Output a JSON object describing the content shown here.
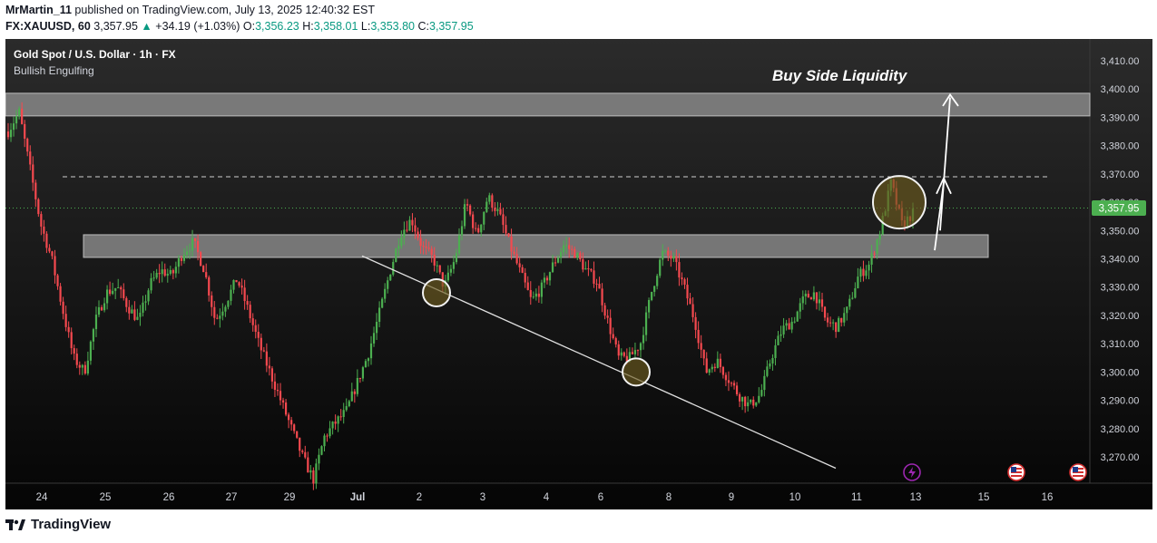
{
  "publish_line": {
    "user": "MrMartin_11",
    "text": " published on TradingView.com, July 13, 2025 12:40:32 EST"
  },
  "symbol_line": {
    "symbol": "FX:XAUUSD, 60",
    "price": "3,357.95",
    "change_arrow": "▲",
    "change": "+34.19 (+1.03%)",
    "o_label": "O:",
    "o": "3,356.23",
    "h_label": "H:",
    "h": "3,358.01",
    "l_label": "L:",
    "l": "3,353.80",
    "c_label": "C:",
    "c": "3,357.95"
  },
  "chart_data": {
    "type": "candlestick",
    "title": "Gold Spot / U.S. Dollar · 1h · FX",
    "indicator": "Bullish Engulfing",
    "annotation": "Buy Side Liquidity",
    "current_price_label": "3,357.95",
    "ylim": [
      3262,
      3416
    ],
    "y_ticks": [
      "3,410.00",
      "3,400.00",
      "3,390.00",
      "3,380.00",
      "3,370.00",
      "3,360.00",
      "3,350.00",
      "3,340.00",
      "3,330.00",
      "3,320.00",
      "3,310.00",
      "3,300.00",
      "3,290.00",
      "3,280.00",
      "3,270.00"
    ],
    "x_ticks": [
      "24",
      "25",
      "26",
      "27",
      "29",
      "Jul",
      "2",
      "3",
      "4",
      "6",
      "8",
      "9",
      "10",
      "11",
      "13",
      "15",
      "16"
    ],
    "zones": [
      {
        "low": 3390.5,
        "high": 3398.5
      },
      {
        "low": 3340.5,
        "high": 3348.5
      }
    ],
    "dashed_level": 3369,
    "path_points": [
      3385,
      3392,
      3372,
      3352,
      3340,
      3322,
      3305,
      3300,
      3318,
      3328,
      3330,
      3323,
      3318,
      3331,
      3336,
      3334,
      3342,
      3346,
      3336,
      3318,
      3325,
      3333,
      3322,
      3310,
      3300,
      3290,
      3280,
      3270,
      3262,
      3277,
      3282,
      3286,
      3296,
      3306,
      3320,
      3335,
      3349,
      3354,
      3344,
      3340,
      3330,
      3340,
      3360,
      3348,
      3362,
      3356,
      3345,
      3335,
      3325,
      3330,
      3338,
      3345,
      3342,
      3336,
      3332,
      3318,
      3305,
      3305,
      3310,
      3328,
      3342,
      3340,
      3330,
      3318,
      3300,
      3304,
      3298,
      3292,
      3288,
      3292,
      3305,
      3315,
      3318,
      3326,
      3328,
      3318,
      3316,
      3322,
      3334,
      3338,
      3350,
      3367,
      3352,
      3356
    ]
  },
  "icons": [
    "lightning-icon",
    "us-flag-icon",
    "us-flag-icon"
  ],
  "colors": {
    "up": "#089981",
    "down": "#f23645",
    "candle_up": "#4caf50",
    "candle_down": "#f5494f",
    "background_top": "#2a2a2a",
    "background_bottom": "#0a0a0a",
    "zone": "#8c8c8c",
    "price_tag": "#4caf50",
    "event_icon": "#9c27b0"
  },
  "footer": {
    "brand": "TradingView"
  }
}
